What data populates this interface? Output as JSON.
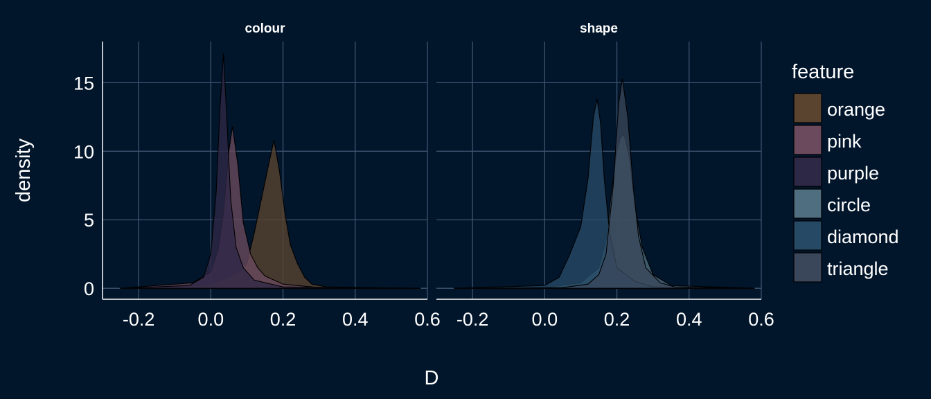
{
  "chart_data": {
    "type": "area",
    "xlabel": "D",
    "ylabel": "density",
    "xlim": [
      -0.3,
      0.6
    ],
    "ylim": [
      -0.8,
      18
    ],
    "x_ticks": [
      -0.2,
      0.0,
      0.2,
      0.4,
      0.6
    ],
    "x_tick_labels": [
      "-0.2",
      "0.0",
      "0.2",
      "0.4",
      "0.6"
    ],
    "y_ticks": [
      0,
      5,
      10,
      15
    ],
    "y_tick_labels": [
      "0",
      "5",
      "10",
      "15"
    ],
    "grid": true,
    "legend_title": "feature",
    "legend_position": "right",
    "colors": {
      "background": "#01152b",
      "grid": "#3f5570",
      "axis": "#ffffff",
      "text": "#ffffff",
      "outline": "#000000"
    },
    "panels": [
      {
        "title": "colour",
        "series": [
          {
            "name": "orange",
            "color": "#5a4430",
            "x": [
              -0.25,
              -0.1,
              0.0,
              0.05,
              0.08,
              0.1,
              0.12,
              0.14,
              0.16,
              0.175,
              0.19,
              0.205,
              0.22,
              0.24,
              0.26,
              0.28,
              0.32,
              0.4,
              0.58
            ],
            "y": [
              0,
              0.05,
              0.3,
              0.8,
              1.2,
              1.8,
              4.0,
              6.5,
              9.0,
              10.8,
              8.6,
              5.5,
              3.2,
              1.8,
              0.8,
              0.3,
              0.1,
              0.05,
              0
            ]
          },
          {
            "name": "pink",
            "color": "#6c4a5d",
            "x": [
              -0.25,
              -0.05,
              0.0,
              0.02,
              0.035,
              0.05,
              0.06,
              0.075,
              0.09,
              0.11,
              0.13,
              0.15,
              0.2,
              0.3,
              0.58
            ],
            "y": [
              0,
              0.4,
              1.2,
              2.8,
              5.5,
              10.0,
              11.8,
              9.0,
              4.8,
              2.5,
              1.5,
              0.9,
              0.3,
              0.05,
              0
            ]
          },
          {
            "name": "purple",
            "color": "#2e2847",
            "x": [
              -0.25,
              -0.06,
              -0.02,
              0.0,
              0.015,
              0.025,
              0.035,
              0.045,
              0.055,
              0.07,
              0.09,
              0.12,
              0.2,
              0.58
            ],
            "y": [
              0,
              0.2,
              0.8,
              2.5,
              7.0,
              13.0,
              17.1,
              12.0,
              6.5,
              3.0,
              1.5,
              0.6,
              0.1,
              0
            ]
          }
        ]
      },
      {
        "title": "shape",
        "series": [
          {
            "name": "circle",
            "color": "#4f6e80",
            "x": [
              -0.25,
              0.0,
              0.1,
              0.15,
              0.17,
              0.185,
              0.2,
              0.21,
              0.22,
              0.235,
              0.25,
              0.27,
              0.3,
              0.35,
              0.58
            ],
            "y": [
              0,
              0.05,
              0.4,
              1.5,
              3.5,
              7.0,
              10.0,
              11.0,
              11.2,
              9.5,
              6.0,
              3.0,
              1.0,
              0.2,
              0
            ]
          },
          {
            "name": "diamond",
            "color": "#264a66",
            "x": [
              -0.25,
              0.0,
              0.04,
              0.07,
              0.1,
              0.12,
              0.135,
              0.145,
              0.155,
              0.165,
              0.18,
              0.2,
              0.25,
              0.3,
              0.58
            ],
            "y": [
              0,
              0.2,
              0.8,
              2.5,
              4.5,
              8.0,
              12.5,
              13.8,
              12.0,
              8.0,
              4.0,
              1.5,
              0.5,
              0.1,
              0
            ]
          },
          {
            "name": "triangle",
            "color": "#3a475a",
            "x": [
              -0.25,
              0.05,
              0.12,
              0.15,
              0.17,
              0.19,
              0.205,
              0.215,
              0.23,
              0.245,
              0.26,
              0.28,
              0.32,
              0.36,
              0.58
            ],
            "y": [
              0,
              0.05,
              0.3,
              1.0,
              2.5,
              7.5,
              13.5,
              15.3,
              12.5,
              7.5,
              3.8,
              1.5,
              0.4,
              0.1,
              0
            ]
          }
        ]
      }
    ]
  }
}
